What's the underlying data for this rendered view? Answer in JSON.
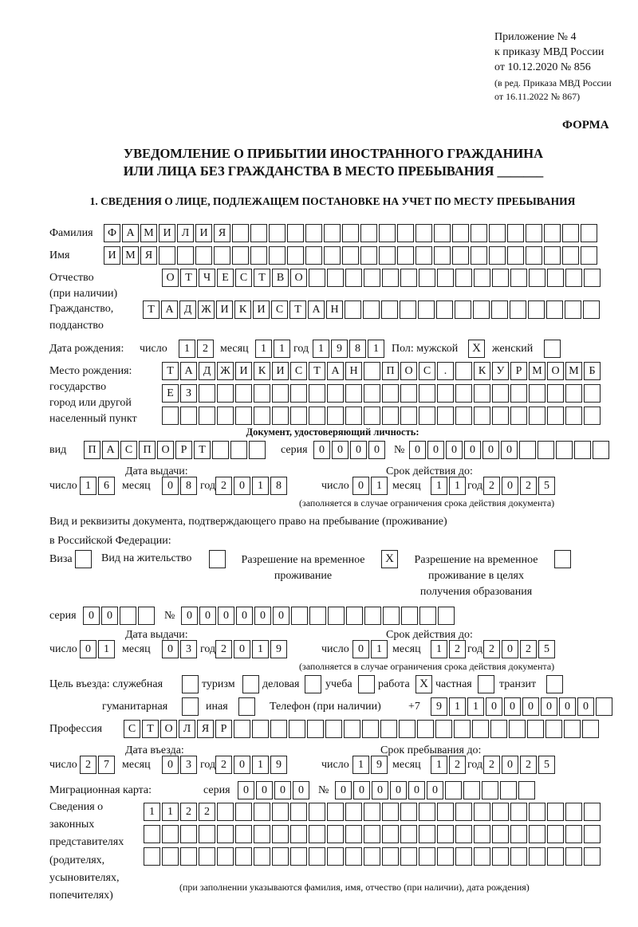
{
  "header": {
    "line1": "Приложение № 4",
    "line2": "к приказу МВД России",
    "line3": "от 10.12.2020 № 856",
    "line4": "(в ред. Приказа МВД России",
    "line5": "от 16.11.2022 № 867)",
    "form_label": "ФОРМА"
  },
  "title": {
    "line1": "УВЕДОМЛЕНИЕ О ПРИБЫТИИ ИНОСТРАННОГО ГРАЖДАНИНА",
    "line2": "ИЛИ ЛИЦА БЕЗ ГРАЖДАНСТВА В МЕСТО ПРЕБЫВАНИЯ _______"
  },
  "section1": {
    "heading": "1. СВЕДЕНИЯ О ЛИЦЕ, ПОДЛЕЖАЩЕМ ПОСТАНОВКЕ НА УЧЕТ ПО МЕСТУ ПРЕБЫВАНИЯ",
    "surname": {
      "label": "Фамилия",
      "value": "ФАМИЛИЯ"
    },
    "name": {
      "label": "Имя",
      "value": "ИМЯ"
    },
    "patronymic": {
      "label": "Отчество",
      "label2": "(при наличии)",
      "value": "ОТЧЕСТВО"
    },
    "citizenship": {
      "label": "Гражданство,",
      "label2": "подданство",
      "value": "ТАДЖИКИСТАН"
    },
    "birth": {
      "label": "Дата рождения:",
      "day_label": "число",
      "month_label": "месяц",
      "year_label": "год",
      "day": "12",
      "month": "11",
      "year": "1981",
      "sex_label": "Пол: мужской",
      "female_label": "женский",
      "male_mark": "X",
      "female_mark": ""
    },
    "birthplace": {
      "label1": "Место рождения:",
      "label2": "государство",
      "label3": "город или другой",
      "label4": "населенный пункт",
      "row1": "ТАДЖИКИСТАН ПОС. КУРМОМБ",
      "row2": "ЕЗ",
      "row3": ""
    },
    "id_doc": {
      "heading": "Документ, удостоверяющий личность:",
      "type_label": "вид",
      "type": "ПАСПОРТ",
      "series_label": "серия",
      "series": "0000",
      "number_label": "№",
      "number": "000000",
      "issue_label": "Дата выдачи:",
      "valid_label": "Срок действия до:",
      "day_label": "число",
      "month_label": "месяц",
      "year_label": "год",
      "issue_day": "16",
      "issue_month": "08",
      "issue_year": "2018",
      "valid_day": "01",
      "valid_month": "11",
      "valid_year": "2025",
      "note": "(заполняется в случае ограничения срока действия документа)"
    },
    "residence_doc": {
      "intro1": "Вид и реквизиты документа, подтверждающего право на пребывание (проживание)",
      "intro2": "в Российской Федерации:",
      "visa_label": "Виза",
      "visa_mark": "",
      "rp_label": "Вид на жительство",
      "rp_mark": "",
      "trp_label1": "Разрешение на временное",
      "trp_label2": "проживание",
      "trp_mark": "X",
      "trpe_label1": "Разрешение на временное",
      "trpe_label2": "проживание в целях",
      "trpe_label3": "получения образования",
      "trpe_mark": "",
      "series_label": "серия",
      "series": "00",
      "number_label": "№",
      "number": "000000",
      "issue_label": "Дата выдачи:",
      "valid_label": "Срок действия до:",
      "day_label": "число",
      "month_label": "месяц",
      "year_label": "год",
      "issue_day": "01",
      "issue_month": "03",
      "issue_year": "2019",
      "valid_day": "01",
      "valid_month": "12",
      "valid_year": "2025",
      "note": "(заполняется в случае ограничения срока действия документа)"
    },
    "purpose": {
      "label": "Цель въезда: служебная",
      "official_mark": "",
      "tourism_label": "туризм",
      "tourism_mark": "",
      "business_label": "деловая",
      "business_mark": "",
      "study_label": "учеба",
      "study_mark": "",
      "work_label": "работа",
      "work_mark": "X",
      "private_label": "частная",
      "private_mark": "",
      "transit_label": "транзит",
      "transit_mark": "",
      "humanitarian_label": "гуманитарная",
      "humanitarian_mark": "",
      "other_label": "иная",
      "other_mark": ""
    },
    "phone": {
      "label": "Телефон (при наличии)",
      "prefix": "+7",
      "value": "911000000"
    },
    "profession": {
      "label": "Профессия",
      "value": "СТОЛЯР"
    },
    "entry": {
      "entry_label": "Дата въезда:",
      "stay_label": "Срок пребывания до:",
      "day_label": "число",
      "month_label": "месяц",
      "year_label": "год",
      "entry_day": "27",
      "entry_month": "03",
      "entry_year": "2019",
      "stay_day": "19",
      "stay_month": "12",
      "stay_year": "2025"
    },
    "migration_card": {
      "label": "Миграционная карта:",
      "series_label": "серия",
      "series": "0000",
      "number_label": "№",
      "number": "000000"
    },
    "representatives": {
      "label1": "Сведения о",
      "label2": "законных",
      "label3": "представителях",
      "label4": "(родителях,",
      "label5": "усыновителях,",
      "label6": "попечителях)",
      "row1": "1122",
      "row2": "",
      "row3": "",
      "note": "(при заполнении указываются фамилия, имя, отчество (при наличии), дата рождения)"
    }
  }
}
